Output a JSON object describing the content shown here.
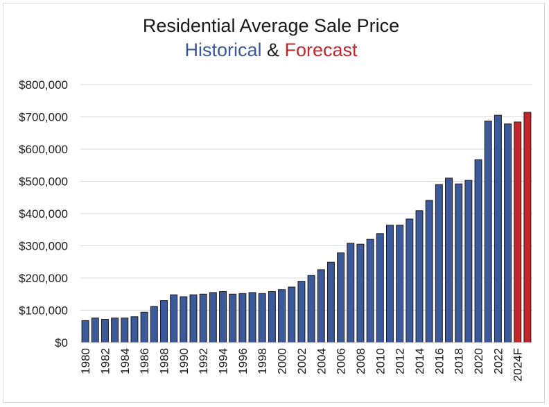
{
  "chart_data": {
    "type": "bar",
    "title": "Residential Average Sale Price",
    "subtitle": {
      "part1": "Historical",
      "part2": " & ",
      "part3": "Forecast"
    },
    "colors": {
      "historical": "#3c5a9a",
      "forecast": "#c0282d",
      "grid": "#d9d9d9"
    },
    "ylim": [
      0,
      800000
    ],
    "yticks": [
      "$0",
      "$100,000",
      "$200,000",
      "$300,000",
      "$400,000",
      "$500,000",
      "$600,000",
      "$700,000",
      "$800,000"
    ],
    "xticks": [
      "1980",
      "1982",
      "1984",
      "1986",
      "1988",
      "1990",
      "1992",
      "1994",
      "1996",
      "1998",
      "2000",
      "2002",
      "2004",
      "2006",
      "2008",
      "2010",
      "2012",
      "2014",
      "2016",
      "2018",
      "2020",
      "2022",
      "2024F"
    ],
    "grid": true,
    "series": [
      {
        "name": "Historical",
        "categories": [
          "1980",
          "1981",
          "1982",
          "1983",
          "1984",
          "1985",
          "1986",
          "1987",
          "1988",
          "1989",
          "1990",
          "1991",
          "1992",
          "1993",
          "1994",
          "1995",
          "1996",
          "1997",
          "1998",
          "1999",
          "2000",
          "2001",
          "2002",
          "2003",
          "2004",
          "2005",
          "2006",
          "2007",
          "2008",
          "2009",
          "2010",
          "2011",
          "2012",
          "2013",
          "2014",
          "2015",
          "2016",
          "2017",
          "2018",
          "2019",
          "2020",
          "2021",
          "2022",
          "2023"
        ],
        "values": [
          68000,
          76000,
          72000,
          76000,
          76000,
          80000,
          94000,
          112000,
          130000,
          148000,
          142000,
          148000,
          150000,
          155000,
          158000,
          150000,
          152000,
          155000,
          152000,
          158000,
          164000,
          172000,
          190000,
          208000,
          226000,
          249000,
          278000,
          308000,
          305000,
          320000,
          338000,
          364000,
          364000,
          383000,
          409000,
          441000,
          490000,
          510000,
          492000,
          503000,
          567000,
          687000,
          705000,
          678000
        ]
      },
      {
        "name": "Forecast",
        "categories": [
          "2024F",
          "2025F"
        ],
        "values": [
          684000,
          714000
        ]
      }
    ]
  }
}
